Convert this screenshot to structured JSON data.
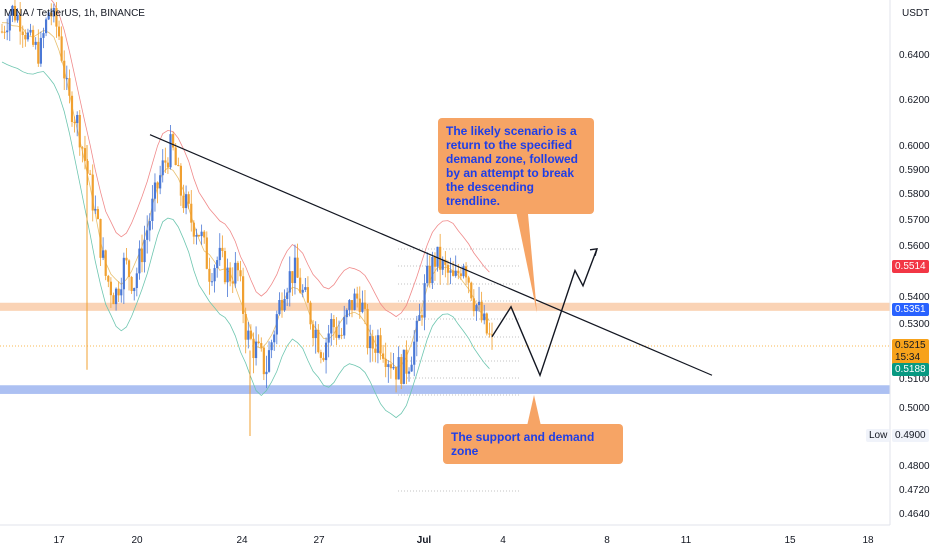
{
  "title": "MINA / TetherUS, 1h, BINANCE",
  "currency": "USDT",
  "annotations": {
    "scenario": "The likely scenario is a return to the specified demand zone, followed by an attempt to break the descending trendline.",
    "support": "The support and demand zone"
  },
  "price_tags": {
    "red": "0.5514",
    "blue": "0.5351",
    "current": "0.5215",
    "countdown": "15:34",
    "green": "0.5188",
    "low_label": "Low",
    "low_value": "0.4900"
  },
  "colors": {
    "bull": "#4a78d6",
    "bear": "#f0a030",
    "resistance_band": "#f9cba8",
    "support_band": "#9db5f0",
    "upper_band": "#f08a8a",
    "lower_band": "#6ec6b0",
    "red_tag": "#f23645",
    "blue_tag": "#2962ff",
    "orange_tag": "#f7a21b",
    "green_tag": "#089981"
  },
  "chart_data": {
    "type": "candlestick",
    "y_ticks": [
      "0.6400",
      "0.6200",
      "0.6000",
      "0.5900",
      "0.5800",
      "0.5700",
      "0.5600",
      "0.5400",
      "0.5300",
      "0.5100",
      "0.5000",
      "0.4800",
      "0.4720",
      "0.4640"
    ],
    "x_ticks": [
      "17",
      "20",
      "24",
      "27",
      "Jul",
      "4",
      "8",
      "11",
      "15",
      "18"
    ],
    "resistance_zone": [
      0.5345,
      0.5375
    ],
    "support_zone": [
      0.5045,
      0.5075
    ],
    "trendline": {
      "from": [
        "Jun 20",
        0.6045
      ],
      "to": [
        "Jul 12",
        0.511
      ]
    },
    "projection": [
      0.525,
      0.536,
      0.511,
      0.55,
      0.544,
      0.5585
    ],
    "candles_close": [
      0.65,
      0.66,
      0.655,
      0.645,
      0.64,
      0.66,
      0.65,
      0.62,
      0.61,
      0.59,
      0.57,
      0.548,
      0.54,
      0.553,
      0.545,
      0.56,
      0.575,
      0.59,
      0.6,
      0.58,
      0.57,
      0.565,
      0.55,
      0.555,
      0.548,
      0.55,
      0.525,
      0.52,
      0.513,
      0.53,
      0.545,
      0.55,
      0.54,
      0.53,
      0.52,
      0.53,
      0.525,
      0.537,
      0.54,
      0.52,
      0.525,
      0.518,
      0.513,
      0.515,
      0.525,
      0.545,
      0.555,
      0.55,
      0.545,
      0.555,
      0.54,
      0.53,
      0.522
    ]
  }
}
